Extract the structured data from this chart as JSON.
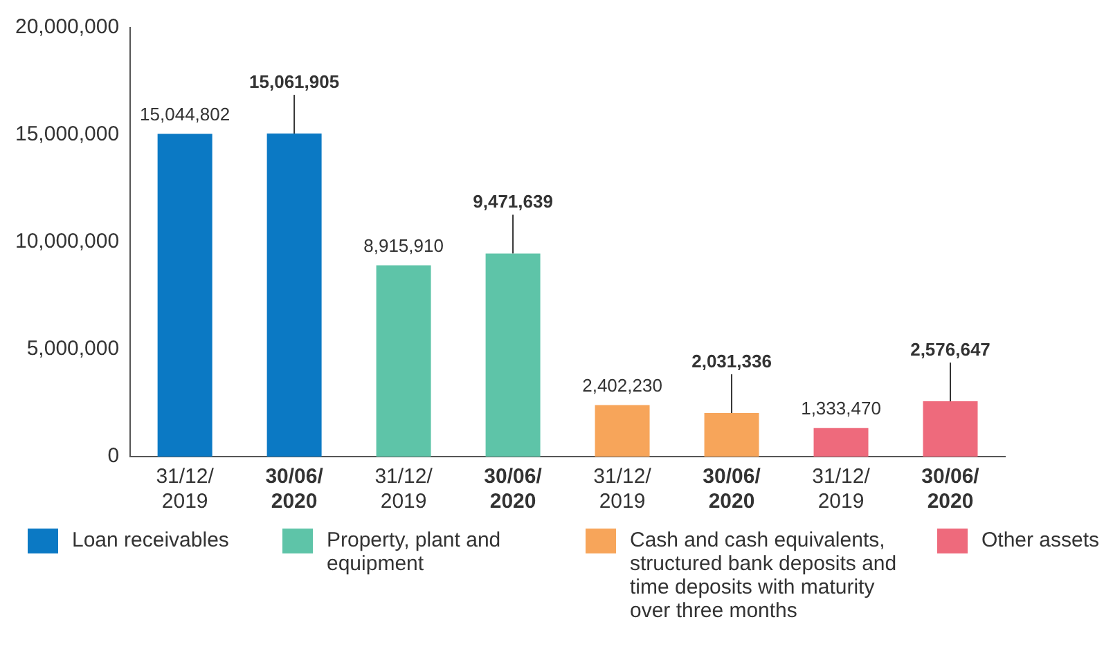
{
  "chart_data": {
    "type": "bar",
    "categories": [
      "31/12/2019",
      "30/06/2020",
      "31/12/2019",
      "30/06/2020",
      "31/12/2019",
      "30/06/2020",
      "31/12/2019",
      "30/06/2020"
    ],
    "series": [
      {
        "name": "Loan receivables",
        "color": "#0b79c4",
        "values": [
          15044802,
          15061905,
          null,
          null,
          null,
          null,
          null,
          null
        ],
        "value_labels": [
          "15,044,802",
          "15,061,905",
          null,
          null,
          null,
          null,
          null,
          null
        ]
      },
      {
        "name": "Property, plant and equipment",
        "color": "#5ec4a8",
        "values": [
          null,
          null,
          8915910,
          9471639,
          null,
          null,
          null,
          null
        ],
        "value_labels": [
          null,
          null,
          "8,915,910",
          "9,471,639",
          null,
          null,
          null,
          null
        ]
      },
      {
        "name": "Cash and cash equivalents, structured bank deposits and time deposits with maturity over three months",
        "color": "#f7a55a",
        "values": [
          null,
          null,
          null,
          null,
          2402230,
          2031336,
          null,
          null
        ],
        "value_labels": [
          null,
          null,
          null,
          null,
          "2,402,230",
          "2,031,336",
          null,
          null
        ]
      },
      {
        "name": "Other assets",
        "color": "#ee6a7c",
        "values": [
          null,
          null,
          null,
          null,
          null,
          null,
          1333470,
          2576647
        ],
        "value_labels": [
          null,
          null,
          null,
          null,
          null,
          null,
          "1,333,470",
          "2,576,647"
        ]
      }
    ],
    "ylim": [
      0,
      20000000
    ],
    "yticks": [
      0,
      {
        "value": 5000000,
        "label": "5,000,000"
      },
      {
        "value": 10000000,
        "label": "10,000,000"
      },
      {
        "value": 15000000,
        "label": "15,000,000"
      },
      {
        "value": 20000000,
        "label": "20,000,000"
      }
    ],
    "legend": "bottom"
  }
}
